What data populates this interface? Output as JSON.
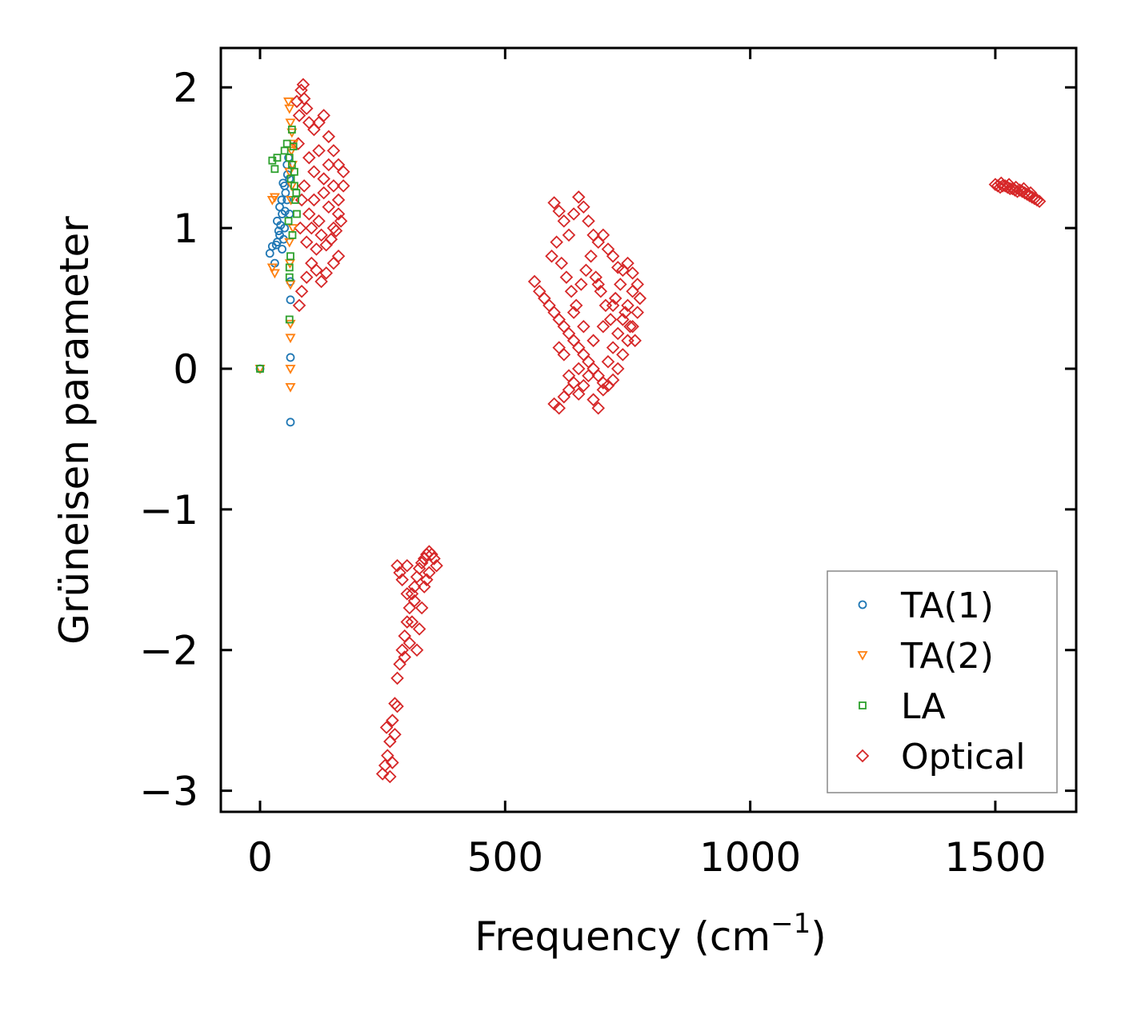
{
  "chart_data": {
    "type": "scatter",
    "title": "",
    "xlabel": "Frequency (cm",
    "xlabel_sup": "−1",
    "xlabel_close": ")",
    "ylabel": "Grüneisen parameter",
    "xlim": [
      -80,
      1665
    ],
    "ylim": [
      -3.15,
      2.28
    ],
    "xticks": [
      0,
      500,
      1000,
      1500
    ],
    "xtick_labels": [
      "0",
      "500",
      "1000",
      "1500"
    ],
    "yticks": [
      -3,
      -2,
      -1,
      0,
      1,
      2
    ],
    "ytick_labels": [
      "−3",
      "−2",
      "−1",
      "0",
      "1",
      "2"
    ],
    "grid": false,
    "legend_position": "lower-right",
    "series": [
      {
        "name": "TA(1)",
        "color": "#1f77b4",
        "marker": "circle",
        "points": [
          [
            0,
            0
          ],
          [
            62,
            -0.38
          ],
          [
            62,
            0.08
          ],
          [
            62,
            0.49
          ],
          [
            62,
            0.62
          ],
          [
            20,
            0.82
          ],
          [
            25,
            0.87
          ],
          [
            30,
            0.75
          ],
          [
            35,
            0.9
          ],
          [
            40,
            0.95
          ],
          [
            45,
            1.1
          ],
          [
            50,
            1.3
          ],
          [
            55,
            1.45
          ],
          [
            45,
            0.85
          ],
          [
            50,
            1.0
          ],
          [
            55,
            1.2
          ],
          [
            60,
            1.35
          ],
          [
            40,
            1.15
          ],
          [
            35,
            1.05
          ],
          [
            58,
            1.5
          ],
          [
            52,
            1.25
          ],
          [
            48,
            0.92
          ],
          [
            42,
            1.02
          ],
          [
            38,
            0.98
          ],
          [
            33,
            0.88
          ],
          [
            56,
            1.38
          ],
          [
            60,
            1.1
          ],
          [
            44,
            1.2
          ],
          [
            47,
            1.32
          ],
          [
            51,
            1.12
          ]
        ]
      },
      {
        "name": "TA(2)",
        "color": "#ff7f0e",
        "marker": "triangle-down",
        "points": [
          [
            0,
            0
          ],
          [
            62,
            -0.13
          ],
          [
            62,
            0.0
          ],
          [
            62,
            0.22
          ],
          [
            62,
            0.32
          ],
          [
            25,
            0.72
          ],
          [
            30,
            0.68
          ],
          [
            25,
            1.2
          ],
          [
            30,
            1.22
          ],
          [
            60,
            1.85
          ],
          [
            62,
            1.75
          ],
          [
            65,
            1.68
          ],
          [
            68,
            1.6
          ],
          [
            58,
            1.9
          ],
          [
            64,
            1.55
          ],
          [
            66,
            1.45
          ],
          [
            60,
            1.4
          ],
          [
            62,
            0.6
          ],
          [
            60,
            0.9
          ],
          [
            65,
            1.3
          ],
          [
            67,
            1.0
          ],
          [
            63,
            1.2
          ],
          [
            61,
            0.75
          ]
        ]
      },
      {
        "name": "LA",
        "color": "#2ca02c",
        "marker": "square",
        "points": [
          [
            0,
            0
          ],
          [
            60,
            0.35
          ],
          [
            60,
            0.65
          ],
          [
            60,
            0.72
          ],
          [
            25,
            1.48
          ],
          [
            30,
            1.42
          ],
          [
            35,
            1.5
          ],
          [
            50,
            1.55
          ],
          [
            55,
            1.6
          ],
          [
            60,
            1.5
          ],
          [
            65,
            1.45
          ],
          [
            70,
            1.4
          ],
          [
            72,
            1.2
          ],
          [
            75,
            1.1
          ],
          [
            70,
            1.3
          ],
          [
            65,
            1.7
          ],
          [
            68,
            1.58
          ],
          [
            63,
            1.35
          ],
          [
            58,
            1.05
          ],
          [
            66,
            0.95
          ],
          [
            62,
            0.8
          ],
          [
            74,
            1.25
          ]
        ]
      },
      {
        "name": "Optical",
        "color": "#d62728",
        "marker": "diamond",
        "points": [
          [
            88,
            2.02
          ],
          [
            84,
            1.98
          ],
          [
            90,
            1.92
          ],
          [
            95,
            1.85
          ],
          [
            75,
            1.9
          ],
          [
            80,
            1.8
          ],
          [
            100,
            1.75
          ],
          [
            110,
            1.7
          ],
          [
            120,
            1.75
          ],
          [
            130,
            1.8
          ],
          [
            140,
            1.65
          ],
          [
            150,
            1.55
          ],
          [
            160,
            1.45
          ],
          [
            170,
            1.4
          ],
          [
            80,
            0.45
          ],
          [
            85,
            0.55
          ],
          [
            95,
            0.65
          ],
          [
            105,
            0.75
          ],
          [
            115,
            0.7
          ],
          [
            125,
            0.62
          ],
          [
            135,
            0.68
          ],
          [
            150,
            0.75
          ],
          [
            160,
            0.8
          ],
          [
            85,
            1.2
          ],
          [
            90,
            1.3
          ],
          [
            100,
            1.1
          ],
          [
            110,
            1.2
          ],
          [
            120,
            1.05
          ],
          [
            130,
            1.25
          ],
          [
            140,
            1.15
          ],
          [
            150,
            1.0
          ],
          [
            160,
            1.2
          ],
          [
            170,
            1.3
          ],
          [
            100,
            1.5
          ],
          [
            110,
            1.4
          ],
          [
            120,
            1.55
          ],
          [
            130,
            1.35
          ],
          [
            140,
            1.45
          ],
          [
            150,
            1.3
          ],
          [
            160,
            1.1
          ],
          [
            95,
            0.9
          ],
          [
            105,
            1.0
          ],
          [
            115,
            0.85
          ],
          [
            125,
            0.95
          ],
          [
            135,
            0.88
          ],
          [
            145,
            0.92
          ],
          [
            155,
            0.98
          ],
          [
            165,
            1.05
          ],
          [
            78,
            1.6
          ],
          [
            82,
            1.0
          ],
          [
            250,
            -2.88
          ],
          [
            255,
            -2.82
          ],
          [
            260,
            -2.75
          ],
          [
            265,
            -2.65
          ],
          [
            270,
            -2.5
          ],
          [
            275,
            -2.38
          ],
          [
            280,
            -2.2
          ],
          [
            285,
            -2.1
          ],
          [
            290,
            -2.0
          ],
          [
            295,
            -1.9
          ],
          [
            300,
            -1.8
          ],
          [
            305,
            -1.7
          ],
          [
            310,
            -1.6
          ],
          [
            315,
            -1.55
          ],
          [
            320,
            -1.48
          ],
          [
            325,
            -1.42
          ],
          [
            330,
            -1.38
          ],
          [
            335,
            -1.35
          ],
          [
            340,
            -1.32
          ],
          [
            345,
            -1.3
          ],
          [
            350,
            -1.32
          ],
          [
            355,
            -1.35
          ],
          [
            360,
            -1.4
          ],
          [
            280,
            -1.4
          ],
          [
            285,
            -1.45
          ],
          [
            290,
            -1.5
          ],
          [
            300,
            -1.6
          ],
          [
            310,
            -1.8
          ],
          [
            320,
            -2.0
          ],
          [
            330,
            -1.7
          ],
          [
            340,
            -1.5
          ],
          [
            270,
            -2.8
          ],
          [
            275,
            -2.6
          ],
          [
            280,
            -2.4
          ],
          [
            295,
            -2.05
          ],
          [
            305,
            -1.95
          ],
          [
            315,
            -1.65
          ],
          [
            325,
            -1.85
          ],
          [
            335,
            -1.55
          ],
          [
            345,
            -1.45
          ],
          [
            265,
            -2.9
          ],
          [
            258,
            -2.55
          ],
          [
            300,
            -1.4
          ],
          [
            600,
            1.18
          ],
          [
            610,
            1.12
          ],
          [
            620,
            1.05
          ],
          [
            630,
            0.95
          ],
          [
            640,
            1.1
          ],
          [
            650,
            1.22
          ],
          [
            660,
            1.15
          ],
          [
            670,
            1.05
          ],
          [
            680,
            0.95
          ],
          [
            690,
            0.9
          ],
          [
            700,
            0.95
          ],
          [
            710,
            0.85
          ],
          [
            720,
            0.8
          ],
          [
            730,
            0.72
          ],
          [
            740,
            0.7
          ],
          [
            750,
            0.75
          ],
          [
            760,
            0.68
          ],
          [
            770,
            0.6
          ],
          [
            560,
            0.62
          ],
          [
            570,
            0.55
          ],
          [
            580,
            0.5
          ],
          [
            590,
            0.45
          ],
          [
            600,
            0.4
          ],
          [
            610,
            0.35
          ],
          [
            620,
            0.3
          ],
          [
            630,
            0.25
          ],
          [
            640,
            0.2
          ],
          [
            650,
            0.15
          ],
          [
            660,
            0.1
          ],
          [
            670,
            0.05
          ],
          [
            680,
            0.0
          ],
          [
            690,
            -0.05
          ],
          [
            700,
            -0.1
          ],
          [
            710,
            -0.12
          ],
          [
            720,
            -0.08
          ],
          [
            730,
            0.0
          ],
          [
            740,
            0.1
          ],
          [
            750,
            0.2
          ],
          [
            760,
            0.3
          ],
          [
            770,
            0.4
          ],
          [
            600,
            -0.25
          ],
          [
            610,
            -0.28
          ],
          [
            620,
            -0.2
          ],
          [
            630,
            -0.15
          ],
          [
            640,
            -0.1
          ],
          [
            650,
            -0.18
          ],
          [
            660,
            -0.12
          ],
          [
            670,
            -0.05
          ],
          [
            680,
            -0.22
          ],
          [
            690,
            -0.28
          ],
          [
            700,
            -0.15
          ],
          [
            710,
            0.05
          ],
          [
            720,
            0.15
          ],
          [
            730,
            0.25
          ],
          [
            740,
            0.35
          ],
          [
            750,
            0.45
          ],
          [
            760,
            0.55
          ],
          [
            595,
            0.8
          ],
          [
            605,
            0.9
          ],
          [
            615,
            0.75
          ],
          [
            625,
            0.65
          ],
          [
            635,
            0.55
          ],
          [
            645,
            0.45
          ],
          [
            655,
            0.6
          ],
          [
            665,
            0.7
          ],
          [
            675,
            0.8
          ],
          [
            685,
            0.65
          ],
          [
            695,
            0.55
          ],
          [
            705,
            0.45
          ],
          [
            715,
            0.35
          ],
          [
            725,
            0.5
          ],
          [
            735,
            0.6
          ],
          [
            745,
            0.4
          ],
          [
            755,
            0.3
          ],
          [
            765,
            0.2
          ],
          [
            775,
            0.5
          ],
          [
            620,
            0.1
          ],
          [
            640,
            0.4
          ],
          [
            660,
            0.3
          ],
          [
            680,
            0.2
          ],
          [
            700,
            0.3
          ],
          [
            720,
            0.45
          ],
          [
            690,
            0.6
          ],
          [
            650,
            0.0
          ],
          [
            630,
            -0.05
          ],
          [
            610,
            0.15
          ],
          [
            1500,
            1.31
          ],
          [
            1505,
            1.3
          ],
          [
            1510,
            1.29
          ],
          [
            1515,
            1.3
          ],
          [
            1520,
            1.3
          ],
          [
            1525,
            1.29
          ],
          [
            1530,
            1.28
          ],
          [
            1535,
            1.28
          ],
          [
            1540,
            1.27
          ],
          [
            1545,
            1.26
          ],
          [
            1550,
            1.27
          ],
          [
            1555,
            1.26
          ],
          [
            1560,
            1.25
          ],
          [
            1565,
            1.24
          ],
          [
            1570,
            1.23
          ],
          [
            1575,
            1.22
          ],
          [
            1580,
            1.21
          ],
          [
            1585,
            1.2
          ],
          [
            1590,
            1.19
          ],
          [
            1512,
            1.32
          ],
          [
            1528,
            1.31
          ],
          [
            1542,
            1.29
          ],
          [
            1558,
            1.28
          ],
          [
            1572,
            1.25
          ]
        ]
      }
    ]
  }
}
